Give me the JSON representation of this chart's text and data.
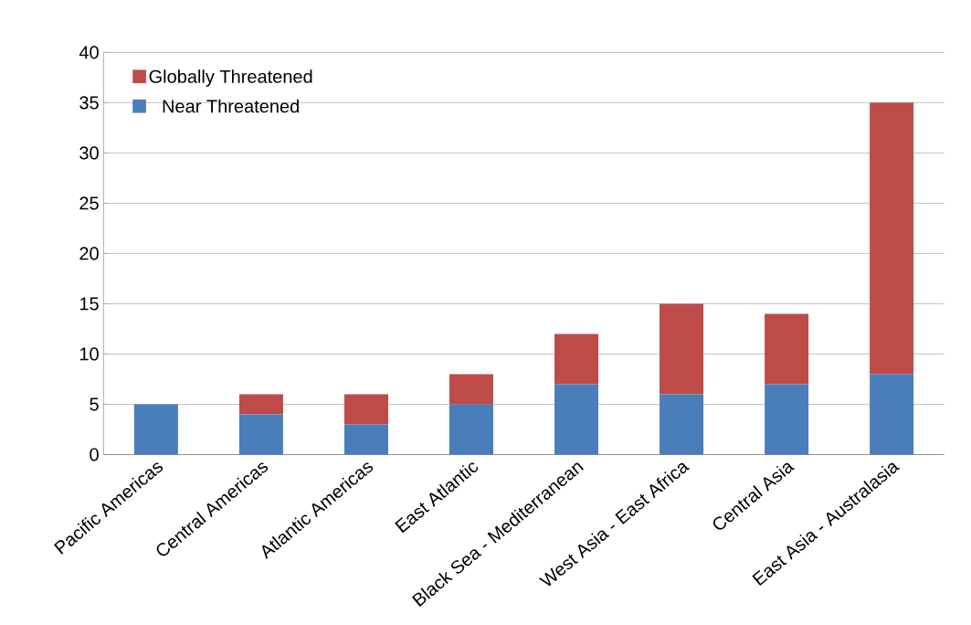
{
  "chart_data": {
    "type": "bar",
    "stacked": true,
    "categories": [
      "Pacific Americas",
      "Central Americas",
      "Atlantic Americas",
      "East Atlantic",
      "Black Sea - Mediterranean",
      "West Asia - East Africa",
      "Central Asia",
      "East Asia - Australasia"
    ],
    "series": [
      {
        "name": "Near Threatened",
        "color": "#4a7ebb",
        "values": [
          5,
          4,
          3,
          5,
          7,
          6,
          7,
          8
        ]
      },
      {
        "name": "Globally Threatened",
        "color": "#be4b48",
        "values": [
          0,
          2,
          3,
          3,
          5,
          9,
          7,
          27
        ]
      }
    ],
    "ylim": [
      0,
      40
    ],
    "yticks": [
      0,
      5,
      10,
      15,
      20,
      25,
      30,
      35,
      40
    ],
    "grid": "y",
    "legend": "top left"
  }
}
